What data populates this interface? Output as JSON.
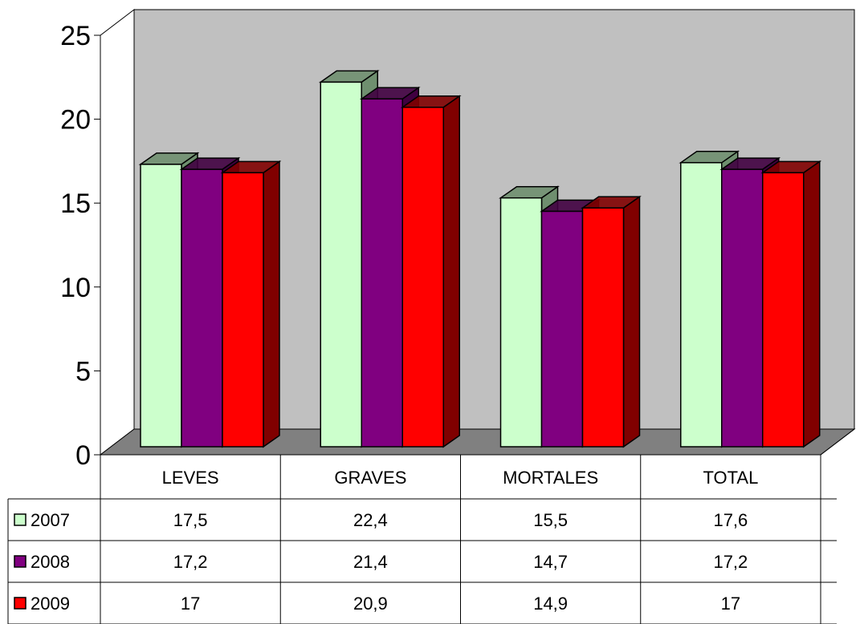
{
  "chart_data": {
    "type": "bar",
    "categories": [
      "LEVES",
      "GRAVES",
      "MORTALES",
      "TOTAL"
    ],
    "series": [
      {
        "name": "2007",
        "values": [
          17.5,
          22.4,
          15.5,
          17.6
        ],
        "color": "#ccffcc",
        "side_color": "#6f8f6f"
      },
      {
        "name": "2008",
        "values": [
          17.2,
          21.4,
          14.7,
          17.2
        ],
        "color": "#800080",
        "side_color": "#400040"
      },
      {
        "name": "2009",
        "values": [
          17,
          20.9,
          14.9,
          17
        ],
        "color": "#ff0000",
        "side_color": "#800000"
      }
    ],
    "table_values": [
      [
        "17,5",
        "22,4",
        "15,5",
        "17,6"
      ],
      [
        "17,2",
        "21,4",
        "14,7",
        "17,2"
      ],
      [
        "17",
        "20,9",
        "14,9",
        "17"
      ]
    ],
    "ylim": [
      0,
      25
    ],
    "y_ticks": [
      "0",
      "5",
      "10",
      "15",
      "20",
      "25"
    ],
    "grid": false,
    "legend": "data-table-left",
    "wall_color": "#c0c0c0",
    "floor_color": "#808080"
  }
}
